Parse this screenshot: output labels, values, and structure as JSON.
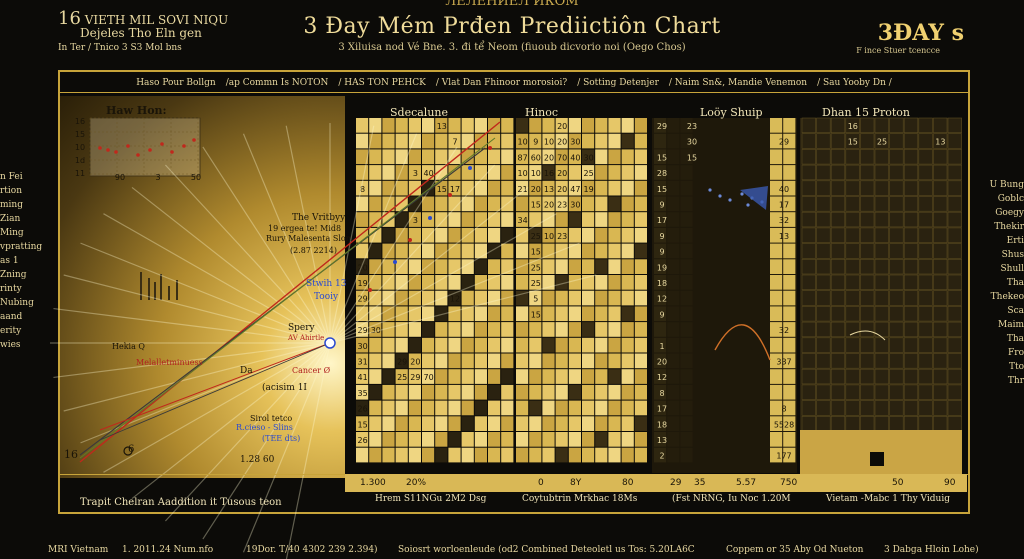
{
  "header": {
    "top_banner": "ЛЕЛЕНИЕЛ ИКОМ",
    "title": "3 Đay Mém Prđen Prediictiôn Chart",
    "subtitle": "3 Xiluisa nod Vé Bne. 3. đi tể Neom (fiuoub dicvorio noi (Oego Chos)",
    "left_big": "16",
    "left_line1": "VIETH MIL SOVI NIQU",
    "left_line2": "Dejeles Tho Eln gen",
    "left_line3": "In Ter / Tnico 3 S3 Mol bns",
    "right_title": "3ĐAY s",
    "right_sub": "F ince Stuer tcencce"
  },
  "navbar": {
    "items": [
      "Haso Pour Bollgn",
      "/ap Commn Is NOTON",
      "/ HAS TON PEHCK",
      "/ Vlat Dan Fhinoor morosioi?",
      "/ Sotting Detenjer",
      "/ Naim Sn&, Mandie Venemon",
      "/ Sau Yooby Dn /"
    ]
  },
  "left_panel": {
    "title": "Haw Hon:",
    "mini_y_ticks": [
      "16",
      "15",
      "10",
      "1d",
      "11"
    ],
    "mini_x_ticks": [
      "90",
      "3",
      "50"
    ],
    "annot1": "The Vritbyy",
    "annot2": "19 ergea te! Mid8",
    "annot3": "Rury Malesenta Slon",
    "annot4": "(2.87 2214)",
    "annot5": "Stwih 13",
    "annot6": "Tooiy",
    "annot7": "Spery",
    "annot8": "AV Ahirtle",
    "annot9": "Hekia Q",
    "annot10": "Melalletminuess",
    "annot11": "Da",
    "annot12": "Cancer Ø",
    "annot13": "(acisim 1I",
    "annot14": "Sirol tetco",
    "annot15": "R.cieso - Slins",
    "annot16": "(TEE dts)",
    "annot17": "1.28 60",
    "annot18": "6",
    "left_axis": "16",
    "bottom_label": "Trapit Chelran Aaddition it Tusous teon"
  },
  "sections": {
    "s1": "Sdecalune",
    "s2": "Hinoc",
    "s3": "Loöy Shuip",
    "s4": "Dhan 15 Proton"
  },
  "grid": {
    "block1_rows": [
      [
        "",
        "",
        "",
        "",
        "",
        "",
        "13",
        "",
        "",
        ""
      ],
      [
        "",
        "",
        "",
        "",
        "",
        "",
        "",
        "",
        "",
        ""
      ],
      [
        "",
        "",
        "",
        "",
        "",
        "",
        "",
        "",
        "",
        ""
      ],
      [
        "",
        "",
        "",
        "",
        "",
        "",
        "",
        "",
        "",
        ""
      ],
      [
        "",
        "",
        "",
        "",
        "",
        "",
        "",
        "",
        "",
        ""
      ],
      [
        "",
        "",
        "",
        "",
        "",
        "",
        "",
        "",
        "",
        ""
      ],
      [
        "",
        "",
        "",
        "",
        "",
        "",
        "",
        "",
        "",
        ""
      ]
    ],
    "block_a_cells": [
      [
        "",
        "",
        "",
        "",
        "",
        "",
        "13",
        "",
        ""
      ],
      [
        "",
        "",
        "",
        "",
        "",
        "",
        "",
        "7",
        ""
      ],
      [
        "",
        "",
        "",
        "",
        "",
        "",
        "",
        "",
        ""
      ],
      [
        "",
        "",
        "",
        "",
        "3",
        "40",
        "",
        "",
        ""
      ],
      [
        "8",
        "",
        "",
        "",
        "",
        "",
        "15",
        "17",
        ""
      ],
      [
        "",
        "",
        "",
        "",
        "",
        "",
        "",
        "",
        ""
      ],
      [
        "",
        "",
        "",
        "",
        "3",
        "",
        "",
        "",
        ""
      ],
      [
        "",
        "",
        "",
        "",
        "",
        "",
        "",
        "",
        ""
      ],
      [
        "",
        "",
        "",
        "",
        "",
        "",
        "",
        "",
        ""
      ],
      [
        "20",
        "",
        "",
        "",
        "",
        "",
        "",
        "",
        ""
      ],
      [
        "19",
        "",
        "",
        "",
        "",
        "",
        "",
        "",
        ""
      ],
      [
        "29",
        "",
        "",
        "",
        "",
        "",
        "",
        "12",
        ""
      ],
      [
        "",
        "",
        "",
        "",
        "",
        "",
        "",
        "",
        ""
      ],
      [
        "29",
        "30",
        "",
        "",
        "",
        "",
        "",
        "",
        ""
      ],
      [
        "30",
        "",
        "",
        "",
        "",
        "",
        "",
        "",
        ""
      ],
      [
        "31",
        "",
        "",
        "29",
        "20",
        "",
        "",
        "",
        ""
      ],
      [
        "41",
        "",
        "",
        "25",
        "29",
        "70",
        "",
        "",
        ""
      ],
      [
        "35",
        "",
        "",
        "",
        "",
        "",
        "",
        "",
        ""
      ],
      [
        "26",
        "",
        "",
        "",
        "",
        "",
        "",
        "",
        ""
      ],
      [
        "15",
        "",
        "",
        "",
        "",
        "",
        "",
        "",
        ""
      ],
      [
        "26",
        "",
        "",
        "",
        "",
        "",
        "",
        "",
        ""
      ]
    ],
    "block_b_cells": [
      [
        "",
        "",
        "",
        "20",
        "",
        "",
        "",
        "",
        "",
        ""
      ],
      [
        "10",
        "9",
        "10",
        "20",
        "30",
        "",
        "",
        "",
        "",
        ""
      ],
      [
        "87",
        "60",
        "20",
        "70",
        "40",
        "30",
        "",
        "",
        "",
        ""
      ],
      [
        "10",
        "10",
        "16",
        "20",
        "",
        "25",
        "",
        "",
        "",
        ""
      ],
      [
        "21",
        "20",
        "13",
        "20",
        "47",
        "19",
        "",
        "",
        "",
        ""
      ],
      [
        "",
        "15",
        "20",
        "23",
        "30",
        "",
        "",
        "",
        "",
        ""
      ],
      [
        "34",
        "",
        "",
        "",
        "",
        "",
        "",
        "",
        "",
        ""
      ],
      [
        "",
        "25",
        "10",
        "23",
        "",
        "",
        "",
        "",
        "",
        ""
      ],
      [
        "",
        "15",
        "",
        "",
        "",
        "",
        "",
        "",
        "",
        ""
      ],
      [
        "",
        "25",
        "",
        "",
        "",
        "",
        "",
        "",
        "",
        ""
      ],
      [
        "",
        "25",
        "",
        "",
        "",
        "",
        "",
        "",
        "",
        ""
      ],
      [
        "",
        "5",
        "",
        "",
        "",
        "",
        "",
        "",
        "",
        ""
      ],
      [
        "",
        "15",
        "",
        "",
        "",
        "",
        "",
        "",
        "",
        ""
      ],
      [
        "",
        "",
        "",
        "",
        "",
        "",
        "",
        "",
        "",
        ""
      ],
      [
        "",
        "",
        "",
        "",
        "",
        "",
        "",
        "",
        "",
        ""
      ],
      [
        "",
        "",
        "",
        "",
        "",
        "",
        "",
        "",
        "",
        ""
      ],
      [
        "",
        "",
        "",
        "",
        "",
        "",
        "",
        "",
        "",
        ""
      ]
    ],
    "block_c_col1": [
      "29",
      "",
      "15",
      "28",
      "15",
      "9",
      "17",
      "9",
      "9",
      "19",
      "18",
      "12",
      "9",
      "",
      "1",
      "20",
      "12",
      "8",
      "17",
      "18",
      "13",
      "2"
    ],
    "block_c_col2": [
      "23",
      "30",
      "15",
      "",
      "",
      "",
      "",
      "",
      "",
      "",
      "",
      "",
      "",
      "",
      "",
      "",
      "",
      "",
      "",
      "",
      "",
      ""
    ],
    "block_c_right": [
      "",
      "29",
      "",
      "",
      "40",
      "17",
      "32",
      "13",
      "",
      "",
      "",
      "",
      "",
      "32",
      "",
      "337",
      "",
      "",
      "8",
      "5528",
      "",
      "177"
    ],
    "block_d_values": [
      [
        "",
        "",
        "",
        "16",
        "",
        "",
        "",
        "",
        "",
        ""
      ],
      [
        "",
        "",
        "",
        "15",
        "",
        "25",
        "",
        "",
        "",
        "13"
      ],
      [
        "",
        "",
        "",
        "",
        "",
        "",
        "",
        "",
        "",
        ""
      ],
      [
        "",
        "",
        "",
        "",
        "",
        "",
        "",
        "",
        "",
        ""
      ],
      [
        "",
        "",
        "",
        "",
        "",
        "",
        "",
        "",
        "",
        ""
      ],
      [
        "",
        "",
        "",
        "",
        "",
        "",
        "",
        "",
        "",
        ""
      ],
      [
        "",
        "",
        "",
        "",
        "",
        "",
        "",
        "",
        "",
        ""
      ],
      [
        "",
        "",
        "",
        "",
        "",
        "",
        "",
        "",
        "",
        ""
      ],
      [
        "",
        "",
        "",
        "",
        "",
        "",
        "",
        "",
        "",
        ""
      ]
    ]
  },
  "footer_numbers": {
    "n1": "1.300",
    "n2": "20%",
    "n3": "0",
    "n4": "8Y",
    "n5": "80",
    "n6": "29",
    "n7": "35",
    "n8": "5.57",
    "n9": "750",
    "n10": "50",
    "n11": "90"
  },
  "footer_labels": {
    "l1": "Hrem S11NGu 2M2 Dsg",
    "l2": "Coytubtrin Mrkhac 18Ms",
    "l3": "(Fst NRNG, Iu Noc 1.20M",
    "l4": "Vietam -Mabc 1 Thy Viduig"
  },
  "bottom_bar": {
    "b1": "MRI Vietnam",
    "b2": "1.  2011.24  Num.nfo",
    "b3": "19Dor. T/40 4302 239 2.394)",
    "b4": "Soiosrt worloenleude (od2 Combined Deteoletl us Tos: 5.20LA6C",
    "b5": "Coppem or 35 Aby Od Nueton",
    "b6": "3 Dabga Hloin Lohe)"
  },
  "side_left": [
    "n Fei",
    "rtion",
    "ming",
    "Zian",
    "Ming",
    "vpratting",
    "as 1",
    "Zning",
    "rinty",
    "Nubing",
    "aand",
    "erity",
    "wies"
  ],
  "side_right": [
    "U Bung",
    "Goblc",
    "Goegy",
    "Thekir",
    "Erti",
    "Shus",
    "Shull",
    "Tha",
    "Thekeo",
    "Sca",
    "Maim",
    "Tha",
    "Fro",
    "Tto",
    "Thr"
  ],
  "chart_data": {
    "type": "line",
    "title": "3 Đay Mém Prđen Prediictiôn Chart",
    "xlabel": "",
    "ylabel": "",
    "series": [],
    "colors": {
      "line_red": "#c0281c",
      "line_dark": "#3a3a3a",
      "line_green": "#5f7a2a",
      "gold": "#d6b24a",
      "dark_cell": "#2a2210"
    }
  }
}
